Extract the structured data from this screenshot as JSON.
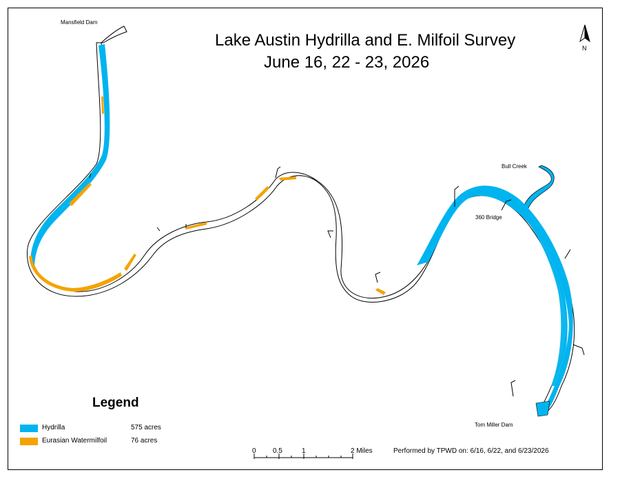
{
  "title_line1": "Lake Austin Hydrilla and E. Milfoil Survey",
  "title_line2": "June 16, 22 - 23, 2026",
  "places": {
    "mansfield": "Mansfield Dam",
    "bull_creek": "Bull Creek",
    "bridge_360": "360 Bridge",
    "tom_miller": "Tom Miller Dam"
  },
  "north_label": "N",
  "legend": {
    "title": "Legend",
    "items": [
      {
        "label": "Hydrilla",
        "acres": "575 acres",
        "color": "#00b4ef"
      },
      {
        "label": "Eurasian Watermilfoil",
        "acres": "76 acres",
        "color": "#f5a300"
      }
    ]
  },
  "scale": {
    "ticks": [
      "0",
      "0.5",
      "1",
      "2 Miles"
    ]
  },
  "credit": "Performed by TPWD on: 6/16, 6/22, and 6/23/2026",
  "colors": {
    "hydrilla": "#00b4ef",
    "milfoil": "#f5a300",
    "outline": "#000000"
  }
}
